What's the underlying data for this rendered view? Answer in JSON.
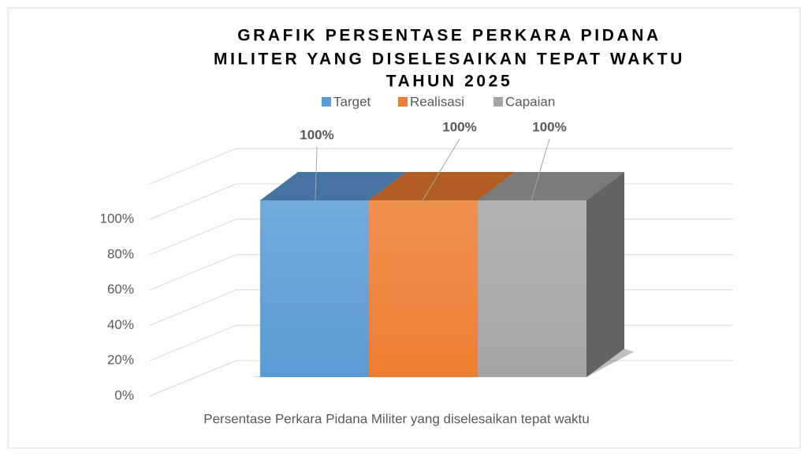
{
  "chart_data": {
    "type": "bar",
    "title": [
      "GRAFIK PERSENTASE PERKARA PIDANA",
      "MILITER YANG DISELESAIKAN TEPAT WAKTU",
      "TAHUN 2025"
    ],
    "categories": [
      "Persentase Perkara Pidana Militer yang diselesaikan tepat waktu"
    ],
    "series": [
      {
        "name": "Target",
        "color": "#5b9bd5",
        "values": [
          100
        ],
        "value_labels": [
          "100%"
        ]
      },
      {
        "name": "Realisasi",
        "color": "#ed7d31",
        "values": [
          100
        ],
        "value_labels": [
          "100%"
        ]
      },
      {
        "name": "Capaian",
        "color": "#a5a5a5",
        "values": [
          100
        ],
        "value_labels": [
          "100%"
        ]
      }
    ],
    "ylim": [
      0,
      120
    ],
    "yticks": [
      {
        "value": 0,
        "label": "0%"
      },
      {
        "value": 20,
        "label": "20%"
      },
      {
        "value": 40,
        "label": "40%"
      },
      {
        "value": 60,
        "label": "60%"
      },
      {
        "value": 80,
        "label": "80%"
      },
      {
        "value": 100,
        "label": "100%"
      }
    ],
    "grid": true,
    "legend": "top"
  }
}
